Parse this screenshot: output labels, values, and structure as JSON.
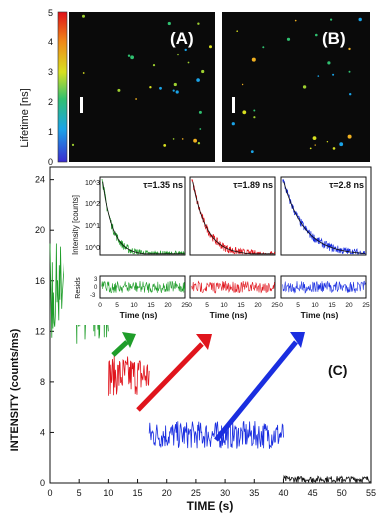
{
  "colors": {
    "green": "#1f9d2a",
    "red": "#e0141c",
    "blue": "#1a2ee0",
    "black": "#111111",
    "panel": "#0a0a0a"
  },
  "top_panels": {
    "colorbar_label": "Lifetime [ns]",
    "colorbar_ticks": [
      "0",
      "1",
      "2",
      "3",
      "4",
      "5"
    ],
    "panel_a_label": "(A)",
    "panel_b_label": "(B)"
  },
  "chart_data": [
    {
      "type": "line",
      "panel": "decay-green",
      "title": "τ=1.35 ns",
      "xlabel": "Time (ns)",
      "ylabel": "Intensity [counts]",
      "ylabel_resid": "Resids",
      "xticks": [
        "0",
        "5",
        "10",
        "15",
        "20",
        "25"
      ],
      "yticks": [
        "10^0",
        "10^1",
        "10^2",
        "10^3"
      ],
      "resid_ticks": [
        "3",
        "0",
        "-3"
      ],
      "xlim": [
        0,
        25
      ],
      "log_y": true,
      "tau_ns": 1.35,
      "color": "#1f9d2a"
    },
    {
      "type": "line",
      "panel": "decay-red",
      "title": "τ=1.89 ns",
      "xlabel": "Time (ns)",
      "xticks": [
        "0",
        "5",
        "10",
        "15",
        "20",
        "25"
      ],
      "xlim": [
        0,
        25
      ],
      "log_y": true,
      "tau_ns": 1.89,
      "color": "#e0141c"
    },
    {
      "type": "line",
      "panel": "decay-blue",
      "title": "τ=2.8 ns",
      "xlabel": "Time (ns)",
      "xticks": [
        "0",
        "5",
        "10",
        "15",
        "20",
        "25"
      ],
      "xlim": [
        0,
        25
      ],
      "log_y": true,
      "tau_ns": 2.8,
      "color": "#1a2ee0"
    },
    {
      "type": "line",
      "panel": "trace",
      "label": "(C)",
      "xlabel": "TIME (s)",
      "ylabel": "INTENSITY (counts/ms)",
      "xlim": [
        0,
        55
      ],
      "ylim": [
        0,
        25
      ],
      "xticks": [
        0,
        5,
        10,
        15,
        20,
        25,
        30,
        35,
        40,
        45,
        50,
        55
      ],
      "yticks": [
        0,
        4,
        8,
        12,
        16,
        20,
        24
      ],
      "series": [
        {
          "color": "#1f9d2a",
          "x": [
            0,
            10
          ],
          "mean": 15
        },
        {
          "color": "#e0141c",
          "x": [
            10,
            17
          ],
          "mean": 8.5
        },
        {
          "color": "#1a2ee0",
          "x": [
            17,
            40
          ],
          "mean": 3.8
        },
        {
          "color": "#111111",
          "x": [
            40,
            55
          ],
          "mean": 0.3
        }
      ]
    }
  ]
}
